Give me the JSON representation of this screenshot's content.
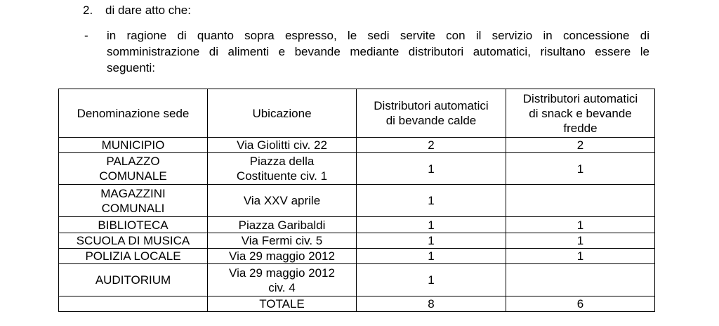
{
  "item": {
    "number": "2.",
    "text": "di dare atto che:"
  },
  "bullet": {
    "marker": "-",
    "lines": [
      "in ragione di quanto sopra espresso, le sedi servite con il servizio in concessione di",
      "somministrazione di alimenti e bevande mediante distributori automatici, risultano essere le",
      "seguenti:"
    ]
  },
  "table": {
    "header": [
      "Denominazione sede",
      "Ubicazione",
      "Distributori automatici\ndi bevande calde",
      "Distributori automatici\ndi snack e bevande\nfredde"
    ],
    "rows": [
      [
        "MUNICIPIO",
        "Via Giolitti civ. 22",
        2,
        2
      ],
      [
        "PALAZZO\nCOMUNALE",
        "Piazza della\nCostituente civ. 1",
        1,
        1
      ],
      [
        "MAGAZZINI\nCOMUNALI",
        "Via XXV aprile",
        1,
        null
      ],
      [
        "BIBLIOTECA",
        "Piazza Garibaldi",
        1,
        1
      ],
      [
        "SCUOLA DI MUSICA",
        "Via Fermi civ. 5",
        1,
        1
      ],
      [
        "POLIZIA LOCALE",
        "Via 29 maggio 2012",
        1,
        1
      ],
      [
        "AUDITORIUM",
        "Via 29 maggio 2012\nciv. 4",
        1,
        null
      ],
      [
        null,
        "TOTALE",
        8,
        6
      ]
    ]
  }
}
